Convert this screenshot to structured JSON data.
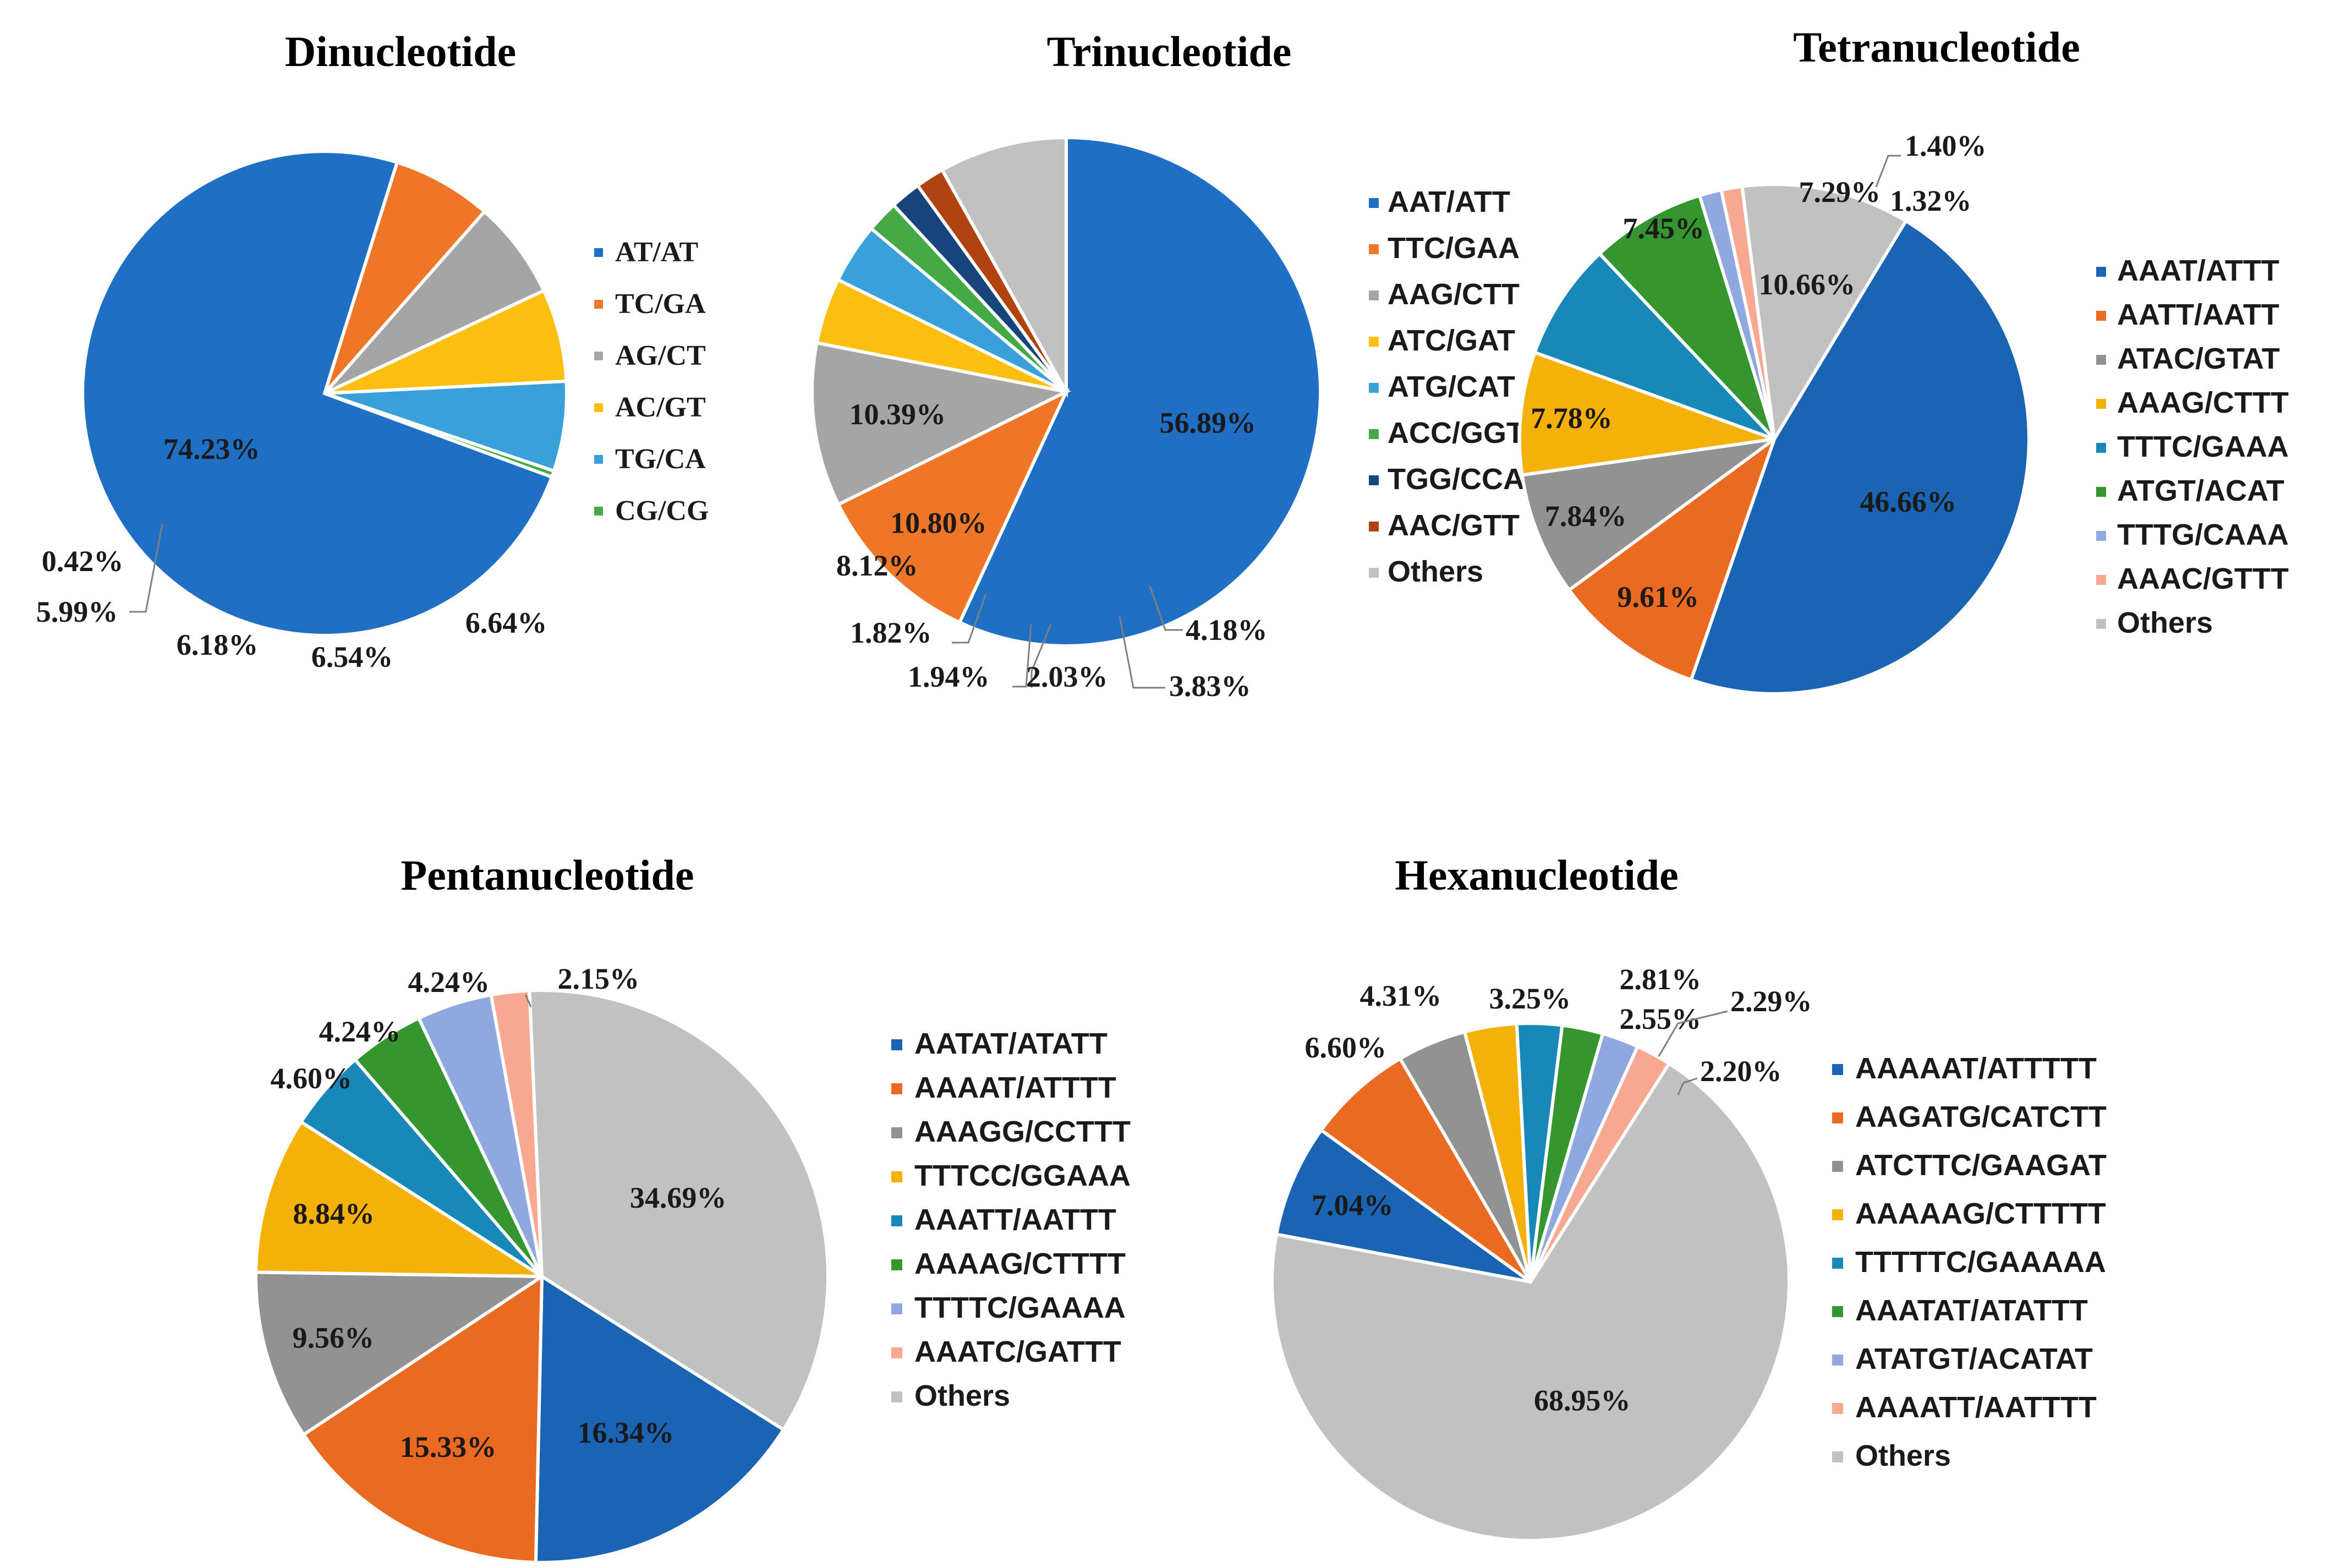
{
  "colors": {
    "blue": "#1f6fc5",
    "orange": "#ee7626",
    "gray": "#a5a5a5",
    "yellow": "#fdbf0f",
    "light_blue": "#3aa0da",
    "green": "#45aa46",
    "navy": "#17457b",
    "brown": "#b04310",
    "light_gray": "#c1c1c1",
    "steel_blue": "#1b64b3",
    "burnt_orange": "#ea6a21",
    "mid_gray": "#929292",
    "amber": "#f3b109",
    "teal": "#1788b8",
    "forest_green": "#35962f",
    "periwinkle": "#8fa8df",
    "salmon": "#f8a891"
  },
  "chart_data": [
    {
      "type": "pie",
      "title": "Dinucleotide",
      "categories": [
        "AT/AT",
        "TC/GA",
        "AG/CT",
        "AC/GT",
        "TG/CA",
        "CG/CG"
      ],
      "values": [
        74.23,
        6.64,
        6.54,
        6.18,
        5.99,
        0.42
      ],
      "labels": [
        "74.23%",
        "6.64%",
        "6.54%",
        "6.18%",
        "5.99%",
        "0.42%"
      ],
      "colors": [
        "#1f6fc5",
        "#ee7626",
        "#a5a5a5",
        "#fdbf0f",
        "#3aa0da",
        "#45aa46"
      ],
      "legend_position": "right"
    },
    {
      "type": "pie",
      "title": "Trinucleotide",
      "categories": [
        "AAT/ATT",
        "TTC/GAA",
        "AAG/CTT",
        "ATC/GAT",
        "ATG/CAT",
        "ACC/GGT",
        "TGG/CCA",
        "AAC/GTT",
        "Others"
      ],
      "values": [
        56.89,
        10.8,
        10.39,
        4.18,
        3.83,
        2.03,
        1.94,
        1.82,
        8.12
      ],
      "labels": [
        "56.89%",
        "10.80%",
        "10.39%",
        "4.18%",
        "3.83%",
        "2.03%",
        "1.94%",
        "1.82%",
        "8.12%"
      ],
      "colors": [
        "#1f6fc5",
        "#ee7626",
        "#a5a5a5",
        "#fdbf0f",
        "#3aa0da",
        "#45aa46",
        "#17457b",
        "#b04310",
        "#c1c1c1"
      ],
      "legend_position": "right"
    },
    {
      "type": "pie",
      "title": "Tetranucleotide",
      "categories": [
        "AAAT/ATTT",
        "AATT/AATT",
        "ATAC/GTAT",
        "AAAG/CTTT",
        "TTTC/GAAA",
        "ATGT/ACAT",
        "TTTG/CAAA",
        "AAAC/GTTT",
        "Others"
      ],
      "values": [
        46.66,
        9.61,
        7.84,
        7.78,
        7.45,
        7.29,
        1.4,
        1.32,
        10.66
      ],
      "labels": [
        "46.66%",
        "9.61%",
        "7.84%",
        "7.78%",
        "7.45%",
        "7.29%",
        "1.40%",
        "1.32%",
        "10.66%"
      ],
      "colors": [
        "#1b64b3",
        "#ea6a21",
        "#929292",
        "#f3b109",
        "#1788b8",
        "#35962f",
        "#8fa8df",
        "#f8a891",
        "#c1c1c1"
      ],
      "legend_position": "right"
    },
    {
      "type": "pie",
      "title": "Pentanucleotide",
      "categories": [
        "AATAT/ATATT",
        "AAAAT/ATTTT",
        "AAAGG/CCTTT",
        "TTTCC/GGAAA",
        "AAATT/AATTT",
        "AAAAG/CTTTT",
        "TTTTC/GAAAA",
        "AAATC/GATTT",
        "Others"
      ],
      "values": [
        16.34,
        15.33,
        9.56,
        8.84,
        4.6,
        4.24,
        4.24,
        2.15,
        34.69
      ],
      "labels": [
        "16.34%",
        "15.33%",
        "9.56%",
        "8.84%",
        "4.60%",
        "4.24%",
        "4.24%",
        "2.15%",
        "34.69%"
      ],
      "colors": [
        "#1b64b3",
        "#ea6a21",
        "#929292",
        "#f3b109",
        "#1788b8",
        "#35962f",
        "#8fa8df",
        "#f8a891",
        "#c1c1c1"
      ],
      "legend_position": "right"
    },
    {
      "type": "pie",
      "title": "Hexanucleotide",
      "categories": [
        "AAAAAT/ATTTTT",
        "AAGATG/CATCTT",
        "ATCTTC/GAAGAT",
        "AAAAAG/CTTTTT",
        "TTTTTC/GAAAAA",
        "AAATAT/ATATTT",
        "ATATGT/ACATAT",
        "AAAATT/AATTTT",
        "Others"
      ],
      "values": [
        7.04,
        6.6,
        4.31,
        3.25,
        2.81,
        2.55,
        2.29,
        2.2,
        68.95
      ],
      "labels": [
        "7.04%",
        "6.60%",
        "4.31%",
        "3.25%",
        "2.81%",
        "2.55%",
        "2.29%",
        "2.20%",
        "68.95%"
      ],
      "colors": [
        "#1b64b3",
        "#ea6a21",
        "#929292",
        "#f3b109",
        "#1788b8",
        "#35962f",
        "#8fa8df",
        "#f8a891",
        "#c1c1c1"
      ],
      "legend_position": "right"
    }
  ]
}
